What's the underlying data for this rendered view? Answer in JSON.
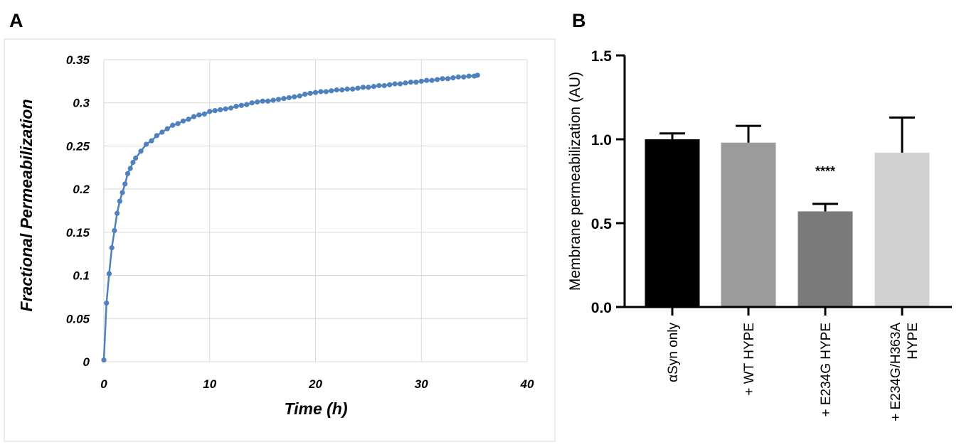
{
  "panels": {
    "a_label": "A",
    "b_label": "B"
  },
  "chart_data": [
    {
      "type": "line",
      "panel": "A",
      "xlabel": "Time (h)",
      "ylabel": "Fractional Permeabilization",
      "xlim": [
        0,
        40
      ],
      "ylim": [
        0,
        0.35
      ],
      "x_ticks": [
        "0",
        "10",
        "20",
        "30",
        "40"
      ],
      "y_ticks": [
        "0",
        "0.05",
        "0.1",
        "0.15",
        "0.2",
        "0.25",
        "0.3",
        "0.35"
      ],
      "grid": true,
      "line_color": "#4f81bd",
      "markers": true,
      "series": [
        {
          "x": [
            0,
            0.25,
            0.5,
            0.75,
            1,
            1.25,
            1.5,
            1.75,
            2,
            2.25,
            2.5,
            2.75,
            3,
            3.5,
            4,
            4.5,
            5,
            5.5,
            6,
            6.5,
            7,
            7.5,
            8,
            8.5,
            9,
            9.5,
            10,
            10.5,
            11,
            11.5,
            12,
            12.5,
            13,
            13.5,
            14,
            14.5,
            15,
            15.5,
            16,
            16.5,
            17,
            17.5,
            18,
            18.5,
            19,
            19.5,
            20,
            20.5,
            21,
            21.5,
            22,
            22.5,
            23,
            23.5,
            24,
            24.5,
            25,
            25.5,
            26,
            26.5,
            27,
            27.5,
            28,
            28.5,
            29,
            29.5,
            30,
            30.5,
            31,
            31.5,
            32,
            32.5,
            33,
            33.5,
            34,
            34.5,
            35,
            35.3
          ],
          "y": [
            0.002,
            0.068,
            0.102,
            0.132,
            0.152,
            0.172,
            0.186,
            0.196,
            0.206,
            0.218,
            0.224,
            0.231,
            0.236,
            0.244,
            0.252,
            0.256,
            0.262,
            0.266,
            0.27,
            0.274,
            0.276,
            0.279,
            0.281,
            0.284,
            0.286,
            0.287,
            0.29,
            0.291,
            0.292,
            0.293,
            0.294,
            0.296,
            0.297,
            0.298,
            0.3,
            0.301,
            0.302,
            0.302,
            0.303,
            0.304,
            0.305,
            0.306,
            0.307,
            0.308,
            0.31,
            0.311,
            0.312,
            0.313,
            0.313,
            0.314,
            0.315,
            0.315,
            0.316,
            0.316,
            0.317,
            0.318,
            0.318,
            0.319,
            0.32,
            0.32,
            0.321,
            0.322,
            0.322,
            0.323,
            0.324,
            0.324,
            0.325,
            0.326,
            0.326,
            0.327,
            0.328,
            0.328,
            0.329,
            0.33,
            0.33,
            0.331,
            0.331,
            0.332
          ]
        }
      ]
    },
    {
      "type": "bar",
      "panel": "B",
      "ylabel": "Membrane permeabilization (AU)",
      "ylim": [
        0,
        1.5
      ],
      "y_ticks": [
        "0.0",
        "0.5",
        "1.0",
        "1.5"
      ],
      "categories": [
        "αSyn only",
        "+ WT HYPE",
        "+ E234G HYPE",
        "+ E234G/H363A HYPE"
      ],
      "category_lines": [
        [
          "αSyn only"
        ],
        [
          "+ WT HYPE"
        ],
        [
          "+ E234G HYPE"
        ],
        [
          "+ E234G/H363A",
          "HYPE"
        ]
      ],
      "values": [
        1.0,
        0.98,
        0.57,
        0.92
      ],
      "errors": [
        0.035,
        0.1,
        0.045,
        0.21
      ],
      "colors": [
        "#000000",
        "#9b9b9b",
        "#7a7a7a",
        "#d2d2d2"
      ],
      "annotations": [
        {
          "category": "+ E234G HYPE",
          "text": "****"
        }
      ],
      "grid": false
    }
  ]
}
